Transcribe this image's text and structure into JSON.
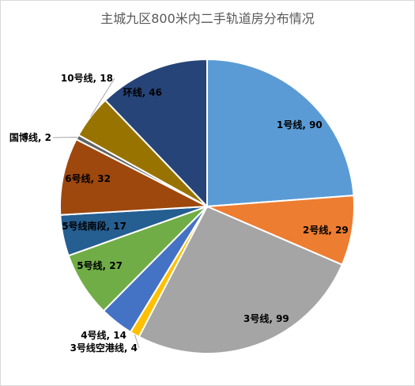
{
  "chart_data": {
    "type": "pie",
    "title": "主城九区800米内二手轨道房分布情况",
    "slices": [
      {
        "label": "1号线",
        "value": 90,
        "color": "#5B9BD5",
        "text_color": "#000000"
      },
      {
        "label": "2号线",
        "value": 29,
        "color": "#ED7D31",
        "text_color": "#000000"
      },
      {
        "label": "3号线",
        "value": 99,
        "color": "#A5A5A5",
        "text_color": "#000000"
      },
      {
        "label": "3号线空港线",
        "value": 4,
        "color": "#FFC000",
        "text_color": "#000000"
      },
      {
        "label": "4号线",
        "value": 14,
        "color": "#4472C4",
        "text_color": "#000000"
      },
      {
        "label": "5号线",
        "value": 27,
        "color": "#70AD47",
        "text_color": "#000000"
      },
      {
        "label": "5号线南段",
        "value": 17,
        "color": "#255E91",
        "text_color": "#000000"
      },
      {
        "label": "6号线",
        "value": 32,
        "color": "#9E480E",
        "text_color": "#000000"
      },
      {
        "label": "国博线",
        "value": 2,
        "color": "#636363",
        "text_color": "#000000"
      },
      {
        "label": "10号线",
        "value": 18,
        "color": "#997300",
        "text_color": "#000000"
      },
      {
        "label": "环线",
        "value": 46,
        "color": "#264478",
        "text_color": "#000000"
      }
    ],
    "legend": "none",
    "data_labels": "category-and-value"
  }
}
